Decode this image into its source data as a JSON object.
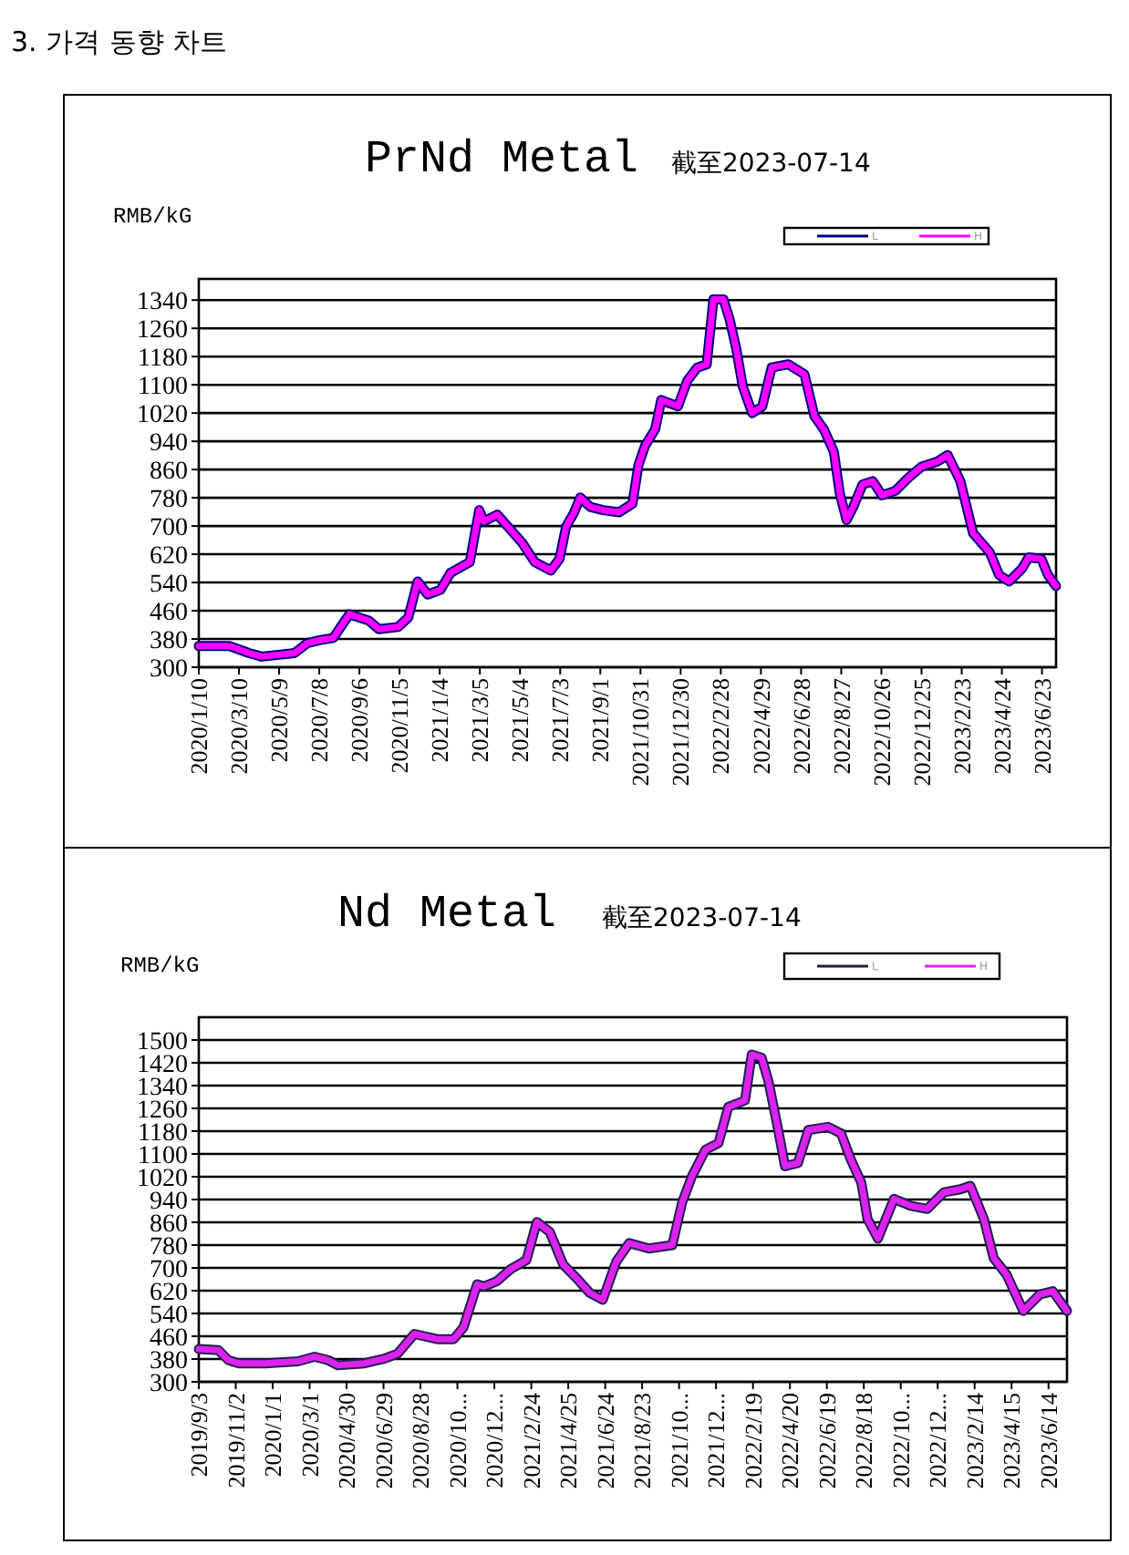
{
  "chart_data": [
    {
      "type": "line",
      "title": "PrNd Metal",
      "subtitle": "截至2023-07-14",
      "ylabel": "RMB/kG",
      "annotations": [
        "3. 가격 동향 차트"
      ],
      "grid": "y",
      "legend": "top right",
      "marker": "none",
      "line_style": "solid",
      "xlim": [
        "2020-01-10",
        "2023-07-14"
      ],
      "ylim": [
        300,
        1400
      ],
      "yticks": [
        300,
        380,
        460,
        540,
        620,
        700,
        780,
        860,
        940,
        1020,
        1100,
        1180,
        1260,
        1340
      ],
      "xticks": [
        {
          "value": "2020-01-10",
          "label": "2020/1/10"
        },
        {
          "value": "2020-03-10",
          "label": "2020/3/10"
        },
        {
          "value": "2020-05-09",
          "label": "2020/5/9"
        },
        {
          "value": "2020-07-08",
          "label": "2020/7/8"
        },
        {
          "value": "2020-09-06",
          "label": "2020/9/6"
        },
        {
          "value": "2020-11-05",
          "label": "2020/11/5"
        },
        {
          "value": "2021-01-04",
          "label": "2021/1/4"
        },
        {
          "value": "2021-03-05",
          "label": "2021/3/5"
        },
        {
          "value": "2021-05-04",
          "label": "2021/5/4"
        },
        {
          "value": "2021-07-03",
          "label": "2021/7/3"
        },
        {
          "value": "2021-09-01",
          "label": "2021/9/1"
        },
        {
          "value": "2021-10-31",
          "label": "2021/10/31"
        },
        {
          "value": "2021-12-30",
          "label": "2021/12/30"
        },
        {
          "value": "2022-02-28",
          "label": "2022/2/28"
        },
        {
          "value": "2022-04-29",
          "label": "2022/4/29"
        },
        {
          "value": "2022-06-28",
          "label": "2022/6/28"
        },
        {
          "value": "2022-08-27",
          "label": "2022/8/27"
        },
        {
          "value": "2022-10-26",
          "label": "2022/10/26"
        },
        {
          "value": "2022-12-25",
          "label": "2022/12/25"
        },
        {
          "value": "2023-02-23",
          "label": "2023/2/23"
        },
        {
          "value": "2023-04-24",
          "label": "2023/4/24"
        },
        {
          "value": "2023-06-23",
          "label": "2023/6/23"
        }
      ],
      "x": [
        "2020-01-10",
        "2020-02-25",
        "2020-03-25",
        "2020-04-13",
        "2020-06-01",
        "2020-06-20",
        "2020-07-10",
        "2020-07-29",
        "2020-08-22",
        "2020-09-20",
        "2020-10-05",
        "2020-11-03",
        "2020-11-18",
        "2020-12-02",
        "2020-12-17",
        "2021-01-05",
        "2021-01-20",
        "2021-02-18",
        "2021-03-04",
        "2021-03-11",
        "2021-03-31",
        "2021-05-07",
        "2021-05-26",
        "2021-06-19",
        "2021-07-02",
        "2021-07-12",
        "2021-07-23",
        "2021-08-02",
        "2021-08-17",
        "2021-09-05",
        "2021-09-29",
        "2021-10-19",
        "2021-10-28",
        "2021-11-07",
        "2021-11-22",
        "2021-12-01",
        "2021-12-26",
        "2022-01-09",
        "2022-01-24",
        "2022-02-07",
        "2022-02-17",
        "2022-03-04",
        "2022-03-13",
        "2022-03-23",
        "2022-04-02",
        "2022-04-16",
        "2022-05-01",
        "2022-05-15",
        "2022-06-09",
        "2022-07-03",
        "2022-07-18",
        "2022-08-01",
        "2022-08-16",
        "2022-08-25",
        "2022-09-04",
        "2022-09-14",
        "2022-09-28",
        "2022-10-13",
        "2022-10-27",
        "2022-11-16",
        "2022-12-05",
        "2022-12-25",
        "2023-01-18",
        "2023-02-02",
        "2023-02-21",
        "2023-03-12",
        "2023-04-06",
        "2023-04-20",
        "2023-05-05",
        "2023-05-24",
        "2023-06-03",
        "2023-06-22",
        "2023-07-02",
        "2023-07-14"
      ],
      "series": [
        {
          "name": "L",
          "color": "#000080",
          "values": [
            360,
            360,
            340,
            330,
            340,
            368,
            377,
            383,
            450,
            432,
            408,
            414,
            441,
            543,
            506,
            519,
            567,
            598,
            745,
            713,
            732,
            653,
            598,
            574,
            607,
            699,
            735,
            781,
            754,
            745,
            739,
            763,
            873,
            928,
            974,
            1057,
            1039,
            1112,
            1149,
            1158,
            1342,
            1342,
            1287,
            1204,
            1094,
            1020,
            1039,
            1149,
            1158,
            1130,
            1011,
            974,
            910,
            791,
            717,
            754,
            818,
            827,
            787,
            800,
            836,
            868,
            883,
            901,
            827,
            680,
            625,
            561,
            543,
            579,
            611,
            607,
            561,
            530
          ]
        },
        {
          "name": "H",
          "color": "#ff00ff",
          "values": [
            360,
            360,
            340,
            330,
            340,
            368,
            377,
            383,
            450,
            432,
            408,
            414,
            441,
            543,
            506,
            519,
            567,
            598,
            745,
            713,
            732,
            653,
            598,
            574,
            607,
            699,
            735,
            781,
            754,
            745,
            739,
            763,
            873,
            928,
            974,
            1057,
            1039,
            1112,
            1149,
            1158,
            1342,
            1342,
            1287,
            1204,
            1094,
            1020,
            1039,
            1149,
            1158,
            1130,
            1011,
            974,
            910,
            791,
            717,
            754,
            818,
            827,
            787,
            800,
            836,
            868,
            883,
            901,
            827,
            680,
            625,
            561,
            543,
            579,
            611,
            607,
            561,
            530
          ]
        }
      ]
    },
    {
      "type": "line",
      "title": "Nd Metal",
      "subtitle": "截至2023-07-14",
      "ylabel": "RMB/kG",
      "grid": "y",
      "legend": "top right",
      "marker": "none",
      "line_style": "solid",
      "xlim": [
        "2019-09-03",
        "2023-07-14"
      ],
      "ylim": [
        300,
        1580
      ],
      "yticks": [
        300,
        380,
        460,
        540,
        620,
        700,
        780,
        860,
        940,
        1020,
        1100,
        1180,
        1260,
        1340,
        1420,
        1500
      ],
      "xticks": [
        {
          "value": "2019-09-03",
          "label": "2019/9/3"
        },
        {
          "value": "2019-11-02",
          "label": "2019/11/2"
        },
        {
          "value": "2020-01-01",
          "label": "2020/1/1"
        },
        {
          "value": "2020-03-01",
          "label": "2020/3/1"
        },
        {
          "value": "2020-04-30",
          "label": "2020/4/30"
        },
        {
          "value": "2020-06-29",
          "label": "2020/6/29"
        },
        {
          "value": "2020-08-28",
          "label": "2020/8/28"
        },
        {
          "value": "2020-10-27",
          "label": "2020/10..."
        },
        {
          "value": "2020-12-26",
          "label": "2020/12..."
        },
        {
          "value": "2021-02-24",
          "label": "2021/2/24"
        },
        {
          "value": "2021-04-25",
          "label": "2021/4/25"
        },
        {
          "value": "2021-06-24",
          "label": "2021/6/24"
        },
        {
          "value": "2021-08-23",
          "label": "2021/8/23"
        },
        {
          "value": "2021-10-22",
          "label": "2021/10..."
        },
        {
          "value": "2021-12-21",
          "label": "2021/12..."
        },
        {
          "value": "2022-02-19",
          "label": "2022/2/19"
        },
        {
          "value": "2022-04-20",
          "label": "2022/4/20"
        },
        {
          "value": "2022-06-19",
          "label": "2022/6/19"
        },
        {
          "value": "2022-08-18",
          "label": "2022/8/18"
        },
        {
          "value": "2022-10-17",
          "label": "2022/10..."
        },
        {
          "value": "2022-12-16",
          "label": "2022/12..."
        },
        {
          "value": "2023-02-14",
          "label": "2023/2/14"
        },
        {
          "value": "2023-04-15",
          "label": "2023/4/15"
        },
        {
          "value": "2023-06-14",
          "label": "2023/6/14"
        }
      ],
      "x": [
        "2019-09-03",
        "2019-10-05",
        "2019-10-21",
        "2019-11-07",
        "2019-12-20",
        "2020-02-11",
        "2020-03-09",
        "2020-03-31",
        "2020-04-16",
        "2020-05-29",
        "2020-06-30",
        "2020-07-22",
        "2020-08-18",
        "2020-09-24",
        "2020-10-21",
        "2020-11-06",
        "2020-11-28",
        "2020-12-09",
        "2020-12-30",
        "2021-01-21",
        "2021-02-16",
        "2021-03-05",
        "2021-03-26",
        "2021-04-17",
        "2021-05-08",
        "2021-05-30",
        "2021-06-20",
        "2021-07-12",
        "2021-08-02",
        "2021-09-03",
        "2021-10-11",
        "2021-10-27",
        "2021-11-12",
        "2021-12-04",
        "2021-12-25",
        "2022-01-10",
        "2022-02-06",
        "2022-02-17",
        "2022-03-05",
        "2022-03-16",
        "2022-04-01",
        "2022-04-12",
        "2022-05-03",
        "2022-05-20",
        "2022-06-21",
        "2022-07-12",
        "2022-07-28",
        "2022-08-14",
        "2022-08-24",
        "2022-09-10",
        "2022-10-06",
        "2022-11-02",
        "2022-11-29",
        "2022-12-26",
        "2023-01-22",
        "2023-02-07",
        "2023-03-01",
        "2023-03-17",
        "2023-04-07",
        "2023-05-04",
        "2023-05-31",
        "2023-06-21",
        "2023-07-14"
      ],
      "series": [
        {
          "name": "L",
          "color": "#202050",
          "values": [
            415,
            411,
            376,
            365,
            365,
            372,
            388,
            376,
            358,
            365,
            381,
            399,
            468,
            450,
            450,
            492,
            642,
            635,
            653,
            695,
            727,
            861,
            826,
            711,
            665,
            612,
            588,
            722,
            787,
            768,
            780,
            930,
            1022,
            1115,
            1138,
            1265,
            1288,
            1449,
            1438,
            1357,
            1184,
            1057,
            1068,
            1184,
            1195,
            1172,
            1080,
            999,
            872,
            803,
            942,
            918,
            907,
            965,
            976,
            988,
            872,
            734,
            676,
            549,
            607,
            618,
            549
          ]
        },
        {
          "name": "H",
          "color": "#dd22ee",
          "values": [
            415,
            411,
            376,
            365,
            365,
            372,
            388,
            376,
            358,
            365,
            381,
            399,
            468,
            450,
            450,
            492,
            642,
            635,
            653,
            695,
            727,
            861,
            826,
            711,
            665,
            612,
            588,
            722,
            787,
            768,
            780,
            930,
            1022,
            1115,
            1138,
            1265,
            1288,
            1449,
            1438,
            1357,
            1184,
            1057,
            1068,
            1184,
            1195,
            1172,
            1080,
            999,
            872,
            803,
            942,
            918,
            907,
            965,
            976,
            988,
            872,
            734,
            676,
            549,
            607,
            618,
            549
          ]
        }
      ]
    }
  ]
}
